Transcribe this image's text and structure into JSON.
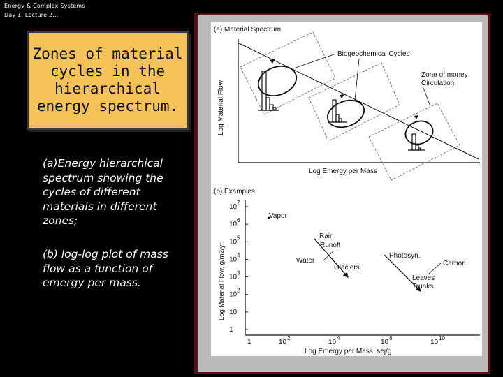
{
  "header": {
    "line1": "Energy & Complex Systems",
    "line2": "Day 1, Lecture 2…"
  },
  "title": {
    "text": "Zones of material cycles in the hierarchical energy spectrum."
  },
  "description": {
    "part_a": "(a)Energy hierarchical spectrum showing the cycles of different materials in different zones;",
    "part_b": "(b) log-log plot of mass flow as a function of emergy per mass."
  },
  "figure": {
    "panel_a": {
      "label": "(a)  Material Spectrum",
      "ylabel": "Log Material Flow",
      "xlabel": "Log Emergy per Mass",
      "annotations": {
        "bio_cycles": "Biogeochemical Cycles",
        "money_line1": "Zone of money",
        "money_line2": "Circulation"
      }
    },
    "panel_b": {
      "label": "(b)  Examples",
      "ylabel": "Log Material Flow, g/m2/yr",
      "xlabel": "Log Emergy per Mass, sej/g",
      "y_ticks": [
        "1",
        "10",
        "10",
        "10",
        "10",
        "10",
        "10",
        "10"
      ],
      "y_exps": [
        "",
        "",
        "2",
        "3",
        "4",
        "5",
        "6",
        "7"
      ],
      "x_ticks": [
        "1",
        "10",
        "10",
        "10",
        "10"
      ],
      "x_exps": [
        "",
        "2",
        "4",
        "8",
        "10"
      ],
      "labels": {
        "vapor": "Vapor",
        "rain": "Rain",
        "runoff": "Runoff",
        "water": "Water",
        "glaciers": "Glaciers",
        "photosyn": "Photosyn.",
        "carbon": "Carbon",
        "leaves": "Leaves",
        "trunks": "Trunks"
      }
    }
  }
}
